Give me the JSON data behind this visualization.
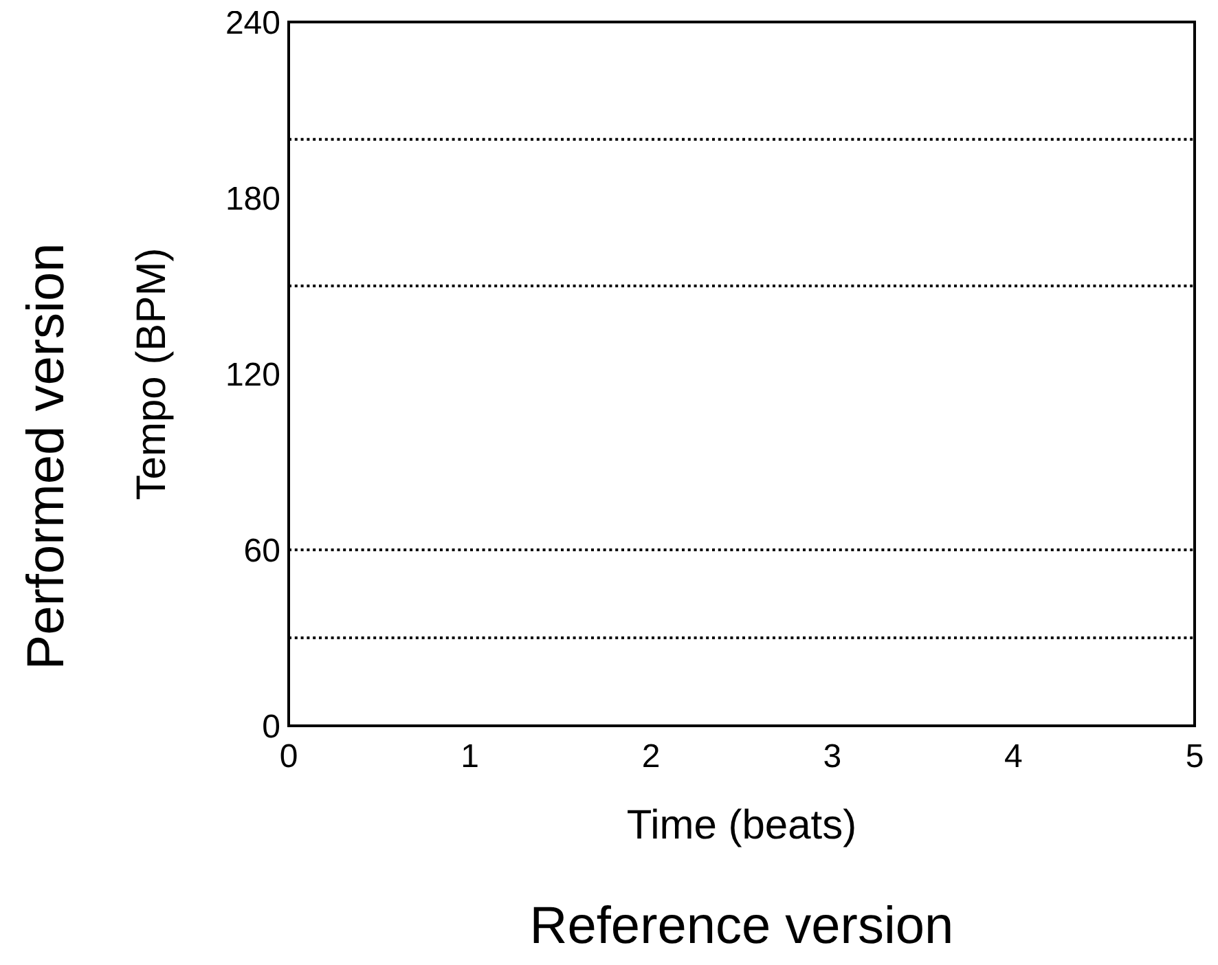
{
  "chart_data": {
    "type": "line",
    "xlabel": "Time (beats)",
    "ylabel": "Tempo (BPM)",
    "annotations": [
      "Performed version",
      "Reference version"
    ],
    "xlim": [
      0,
      5
    ],
    "xticks": [
      0,
      1,
      2,
      3,
      4,
      5
    ],
    "ylim": [
      0,
      240
    ],
    "yticks": [
      0,
      60,
      120,
      180,
      240
    ],
    "ref_lines": [
      {
        "axis": "y",
        "value": 200,
        "color": "#000000",
        "line_style": "dotted"
      },
      {
        "axis": "y",
        "value": 150,
        "color": "#000000",
        "line_style": "dotted"
      },
      {
        "axis": "y",
        "value": 60,
        "color": "#000000",
        "line_style": "dotted"
      },
      {
        "axis": "y",
        "value": 30,
        "color": "#000000",
        "line_style": "dotted"
      }
    ]
  }
}
